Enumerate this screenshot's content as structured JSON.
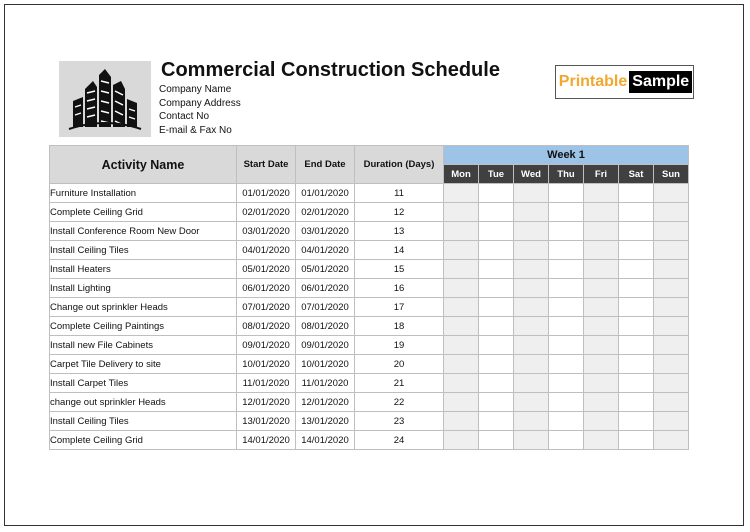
{
  "header": {
    "title": "Commercial Construction Schedule",
    "company_lines": [
      "Company Name",
      "Company Address",
      "Contact No",
      "E-mail & Fax No"
    ],
    "logo_icon": "city-buildings-icon"
  },
  "badge": {
    "part1": "Printable",
    "part2": "Sample"
  },
  "table": {
    "columns": {
      "activity": "Activity Name",
      "start": "Start Date",
      "end": "End Date",
      "duration": "Duration (Days)"
    },
    "week_label": "Week 1",
    "days": [
      "Mon",
      "Tue",
      "Wed",
      "Thu",
      "Fri",
      "Sat",
      "Sun"
    ],
    "rows": [
      {
        "name": "Furniture Installation",
        "start": "01/01/2020",
        "end": "01/01/2020",
        "duration": "11"
      },
      {
        "name": "Complete Ceiling Grid",
        "start": "02/01/2020",
        "end": "02/01/2020",
        "duration": "12"
      },
      {
        "name": "Install Conference Room New Door",
        "start": "03/01/2020",
        "end": "03/01/2020",
        "duration": "13"
      },
      {
        "name": "Install Ceiling Tiles",
        "start": "04/01/2020",
        "end": "04/01/2020",
        "duration": "14"
      },
      {
        "name": "Install Heaters",
        "start": "05/01/2020",
        "end": "05/01/2020",
        "duration": "15"
      },
      {
        "name": "Install Lighting",
        "start": "06/01/2020",
        "end": "06/01/2020",
        "duration": "16"
      },
      {
        "name": "Change out sprinkler Heads",
        "start": "07/01/2020",
        "end": "07/01/2020",
        "duration": "17"
      },
      {
        "name": "Complete Ceiling Paintings",
        "start": "08/01/2020",
        "end": "08/01/2020",
        "duration": "18"
      },
      {
        "name": "Install new File Cabinets",
        "start": "09/01/2020",
        "end": "09/01/2020",
        "duration": "19"
      },
      {
        "name": "Carpet Tile Delivery to site",
        "start": "10/01/2020",
        "end": "10/01/2020",
        "duration": "20"
      },
      {
        "name": "Install Carpet Tiles",
        "start": "11/01/2020",
        "end": "11/01/2020",
        "duration": "21"
      },
      {
        "name": "change out sprinkler Heads",
        "start": "12/01/2020",
        "end": "12/01/2020",
        "duration": "22"
      },
      {
        "name": "Install Ceiling Tiles",
        "start": "13/01/2020",
        "end": "13/01/2020",
        "duration": "23"
      },
      {
        "name": "Complete Ceiling Grid",
        "start": "14/01/2020",
        "end": "14/01/2020",
        "duration": "24"
      }
    ]
  },
  "colors": {
    "header_gray": "#d9d9d9",
    "week_blue": "#9dc3e6",
    "day_dark": "#404040",
    "badge_orange": "#f2a72e"
  }
}
